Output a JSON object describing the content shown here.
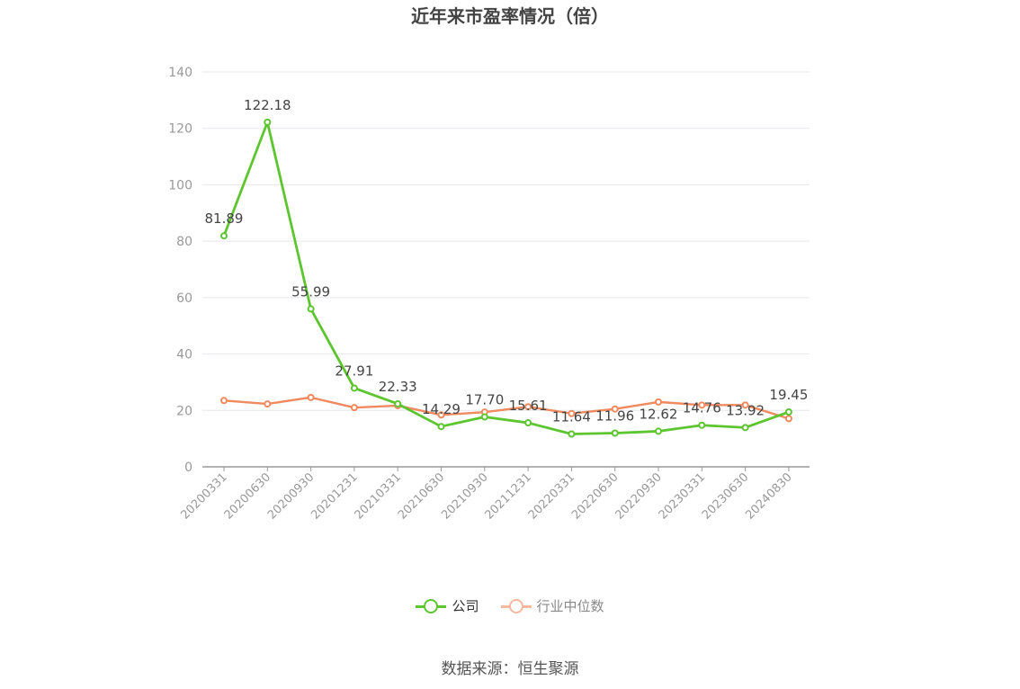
{
  "title": "近年来市盈率情况（倍）",
  "source": "数据来源：恒生聚源",
  "chart_data": {
    "type": "line",
    "title": "近年来市盈率情况（倍）",
    "categories": [
      "20200331",
      "20200630",
      "20200930",
      "20201231",
      "20210331",
      "20210630",
      "20210930",
      "20211231",
      "20220331",
      "20220630",
      "20220930",
      "20230331",
      "20230630",
      "20240830"
    ],
    "ylim": [
      0,
      140
    ],
    "yticks": [
      0,
      20,
      40,
      60,
      80,
      100,
      120,
      140
    ],
    "grid": true,
    "legend_position": "bottom",
    "series": [
      {
        "name": "公司",
        "color": "#5cc52f",
        "values": [
          81.89,
          122.18,
          55.99,
          27.91,
          22.33,
          14.29,
          17.7,
          15.61,
          11.64,
          11.96,
          12.62,
          14.76,
          13.92,
          19.45
        ],
        "labels": [
          "81.89",
          "122.18",
          "55.99",
          "27.91",
          "22.33",
          "14.29",
          "17.70",
          "15.61",
          "11.64",
          "11.96",
          "12.62",
          "14.76",
          "13.92",
          "19.45"
        ]
      },
      {
        "name": "行业中位数",
        "color": "#f0895e",
        "legend_color": "#f7b8a0",
        "values": [
          23.5,
          22.3,
          24.6,
          21.0,
          21.7,
          18.4,
          19.4,
          21.3,
          18.9,
          20.5,
          23.0,
          21.9,
          21.9,
          17.1
        ]
      }
    ]
  }
}
